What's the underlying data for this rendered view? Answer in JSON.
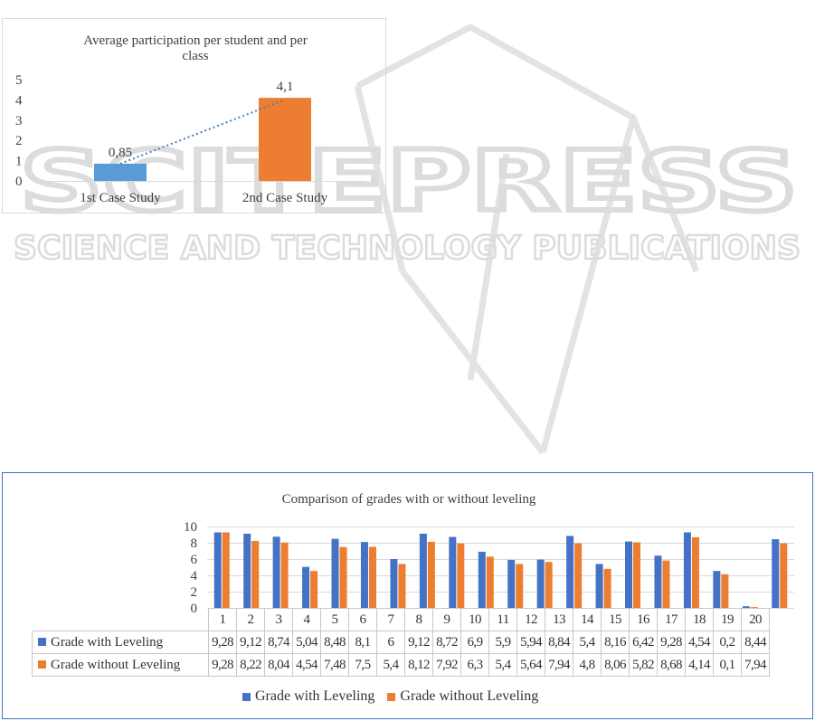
{
  "watermark": {
    "main": "SCITEPRESS",
    "sub": "SCIENCE AND TECHNOLOGY PUBLICATIONS"
  },
  "chart_data": [
    {
      "type": "bar",
      "title": "Average participation  per student and per class",
      "title_lines": [
        "Average participation  per student and per",
        "class"
      ],
      "categories": [
        "1st Case Study",
        "2nd Case Study"
      ],
      "values": [
        0.85,
        4.1
      ],
      "value_labels": [
        "0,85",
        "4,1"
      ],
      "bar_colors": [
        "#5b9bd5",
        "#ed7d31"
      ],
      "trendline": {
        "style": "dotted",
        "color": "#4a7fc1"
      },
      "ylim": [
        0,
        5
      ],
      "yticks": [
        0,
        1,
        2,
        3,
        4,
        5
      ],
      "xlabel": "",
      "ylabel": "",
      "grid": false,
      "legend": "none"
    },
    {
      "type": "bar",
      "title": "Comparison of grades with  or without  leveling",
      "categories": [
        "1",
        "2",
        "3",
        "4",
        "5",
        "6",
        "7",
        "8",
        "9",
        "10",
        "11",
        "12",
        "13",
        "14",
        "15",
        "16",
        "17",
        "18",
        "19",
        "20"
      ],
      "series": [
        {
          "name": "Grade with Leveling",
          "color": "#4472c4",
          "values": [
            9.28,
            9.12,
            8.74,
            5.04,
            8.48,
            8.1,
            6,
            9.12,
            8.72,
            6.9,
            5.9,
            5.94,
            8.84,
            5.4,
            8.16,
            6.42,
            9.28,
            4.54,
            0.2,
            8.44
          ],
          "labels": [
            "9,28",
            "9,12",
            "8,74",
            "5,04",
            "8,48",
            "8,1",
            "6",
            "9,12",
            "8,72",
            "6,9",
            "5,9",
            "5,94",
            "8,84",
            "5,4",
            "8,16",
            "6,42",
            "9,28",
            "4,54",
            "0,2",
            "8,44"
          ]
        },
        {
          "name": "Grade without Leveling",
          "color": "#ed7d31",
          "values": [
            9.28,
            8.22,
            8.04,
            4.54,
            7.48,
            7.5,
            5.4,
            8.12,
            7.92,
            6.3,
            5.4,
            5.64,
            7.94,
            4.8,
            8.06,
            5.82,
            8.68,
            4.14,
            0.1,
            7.94
          ],
          "labels": [
            "9,28",
            "8,22",
            "8,04",
            "4,54",
            "7,48",
            "7,5",
            "5,4",
            "8,12",
            "7,92",
            "6,3",
            "5,4",
            "5,64",
            "7,94",
            "4,8",
            "8,06",
            "5,82",
            "8,68",
            "4,14",
            "0,1",
            "7,94"
          ]
        }
      ],
      "ylim": [
        0,
        10
      ],
      "yticks": [
        0,
        2,
        4,
        6,
        8,
        10
      ],
      "xlabel": "",
      "ylabel": "",
      "grid": true,
      "legend": "bottom",
      "data_table": true
    }
  ]
}
